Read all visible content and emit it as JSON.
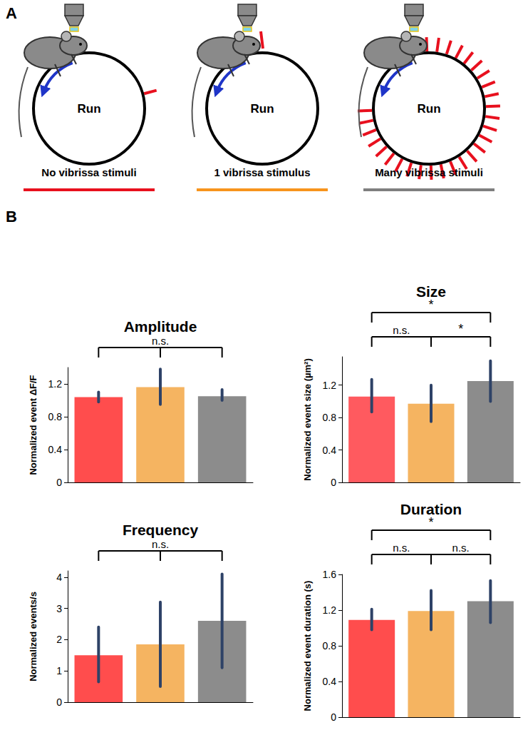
{
  "panel_a": {
    "letter": "A",
    "wheel_label": "Run",
    "conditions": [
      {
        "label": "No vibrissa stimuli",
        "color": "#e8101e"
      },
      {
        "label": "1 vibrissa stimulus",
        "color": "#f7941d"
      },
      {
        "label": "Many vibrissa stimuli",
        "color": "#7f7f7f"
      }
    ]
  },
  "panel_b_letter": "B",
  "chart_data": [
    {
      "type": "bar",
      "title": "Amplitude",
      "ylabel": "Normalized event ΔF/F",
      "categories": [
        null,
        null,
        null
      ],
      "values": [
        1.04,
        1.16,
        1.05
      ],
      "error_range": [
        [
          0.98,
          1.1
        ],
        [
          0.95,
          1.38
        ],
        [
          1.0,
          1.13
        ]
      ],
      "colors": [
        "#ff4d4d",
        "#f5b461",
        "#8c8c8c"
      ],
      "ylim": [
        0,
        1.4
      ],
      "yticks": [
        0,
        0.4,
        0.8,
        1.2
      ],
      "grid": false,
      "tick_labels": "y",
      "significance": [
        {
          "groups": [
            0,
            1,
            2
          ],
          "label": "n.s."
        }
      ]
    },
    {
      "type": "bar",
      "title": "Size",
      "ylabel": "Normalized event size (µm²)",
      "categories": [
        null,
        null,
        null
      ],
      "values": [
        1.06,
        0.97,
        1.25
      ],
      "error_range": [
        [
          0.87,
          1.27
        ],
        [
          0.75,
          1.2
        ],
        [
          1.0,
          1.5
        ]
      ],
      "colors": [
        "#ff5a5f",
        "#f5b461",
        "#8c8c8c"
      ],
      "ylim": [
        0,
        1.55
      ],
      "yticks": [
        0,
        0.4,
        0.8,
        1.2
      ],
      "grid": false,
      "tick_labels": "y",
      "significance": [
        {
          "groups": [
            0,
            2
          ],
          "label": "*"
        },
        {
          "groups": [
            0,
            1
          ],
          "label": "n.s."
        },
        {
          "groups": [
            1,
            2
          ],
          "label": "*"
        }
      ]
    },
    {
      "type": "bar",
      "title": "Frequency",
      "ylabel": "Normalized events/s",
      "categories": [
        null,
        null,
        null
      ],
      "values": [
        1.5,
        1.85,
        2.6
      ],
      "error_range": [
        [
          0.65,
          2.4
        ],
        [
          0.5,
          3.2
        ],
        [
          1.1,
          4.1
        ]
      ],
      "colors": [
        "#ff4d4d",
        "#f5b461",
        "#8c8c8c"
      ],
      "ylim": [
        0,
        4.2
      ],
      "yticks": [
        0,
        1,
        2,
        3,
        4
      ],
      "grid": false,
      "tick_labels": "y",
      "significance": [
        {
          "groups": [
            0,
            1,
            2
          ],
          "label": "n.s."
        }
      ]
    },
    {
      "type": "bar",
      "title": "Duration",
      "ylabel": "Normalized event duration (s)",
      "categories": [
        null,
        null,
        null
      ],
      "values": [
        1.09,
        1.19,
        1.3
      ],
      "error_range": [
        [
          0.98,
          1.21
        ],
        [
          0.98,
          1.42
        ],
        [
          1.06,
          1.53
        ]
      ],
      "colors": [
        "#ff4d4d",
        "#f5b461",
        "#8c8c8c"
      ],
      "ylim": [
        0,
        1.6
      ],
      "yticks": [
        0,
        0.4,
        0.8,
        1.2,
        1.6
      ],
      "grid": false,
      "tick_labels": "y",
      "significance": [
        {
          "groups": [
            0,
            2
          ],
          "label": "*"
        },
        {
          "groups": [
            0,
            1
          ],
          "label": "n.s."
        },
        {
          "groups": [
            1,
            2
          ],
          "label": "n.s."
        }
      ]
    }
  ]
}
